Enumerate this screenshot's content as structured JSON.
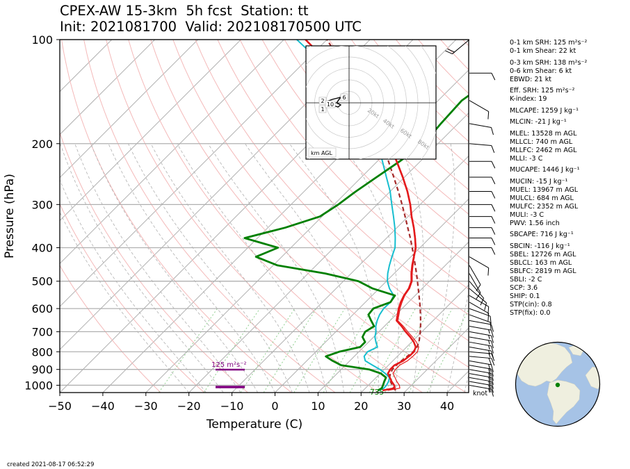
{
  "header": {
    "title_line1": "CPEX-AW 15-3km  5h fcst  Station: tt",
    "title_line2": "Init: 2021081700  Valid: 202108170500 UTC"
  },
  "footer": {
    "created": "created 2021-08-17 06:52:29"
  },
  "chart_data": {
    "type": "skew-t",
    "xlabel": "Temperature (C)",
    "ylabel": "Pressure (hPa)",
    "xlim": [
      -50,
      45
    ],
    "ylim": [
      1050,
      100
    ],
    "xticks": [
      -50,
      -40,
      -30,
      -20,
      -10,
      0,
      10,
      20,
      30,
      40
    ],
    "yticks": [
      100,
      200,
      300,
      400,
      500,
      600,
      700,
      800,
      900,
      1000
    ],
    "y_scale": "log",
    "grid": true,
    "colors": {
      "temperature": "#e41a1c",
      "virtual_temperature": "#e41a1c",
      "dewpoint": "#008000",
      "wetbulb": "#17becf",
      "parcel": "#a52a2a",
      "srh_bar": "#800080",
      "dry_adiabat": "#f4b9b9",
      "moist_adiabat": "#b0b0b0",
      "isotherm": "#b0b0b0",
      "mixing_ratio": "#8fcf8f"
    },
    "series": [
      {
        "name": "",
        "key": "temperature",
        "points": [
          [
            1035,
            24.5
          ],
          [
            1020,
            26.8
          ],
          [
            1000,
            26.0
          ],
          [
            975,
            24.5
          ],
          [
            950,
            23.2
          ],
          [
            925,
            21.8
          ],
          [
            900,
            21.4
          ],
          [
            875,
            21.4
          ],
          [
            850,
            22.4
          ],
          [
            825,
            22.7
          ],
          [
            800,
            22.8
          ],
          [
            775,
            22.1
          ],
          [
            750,
            20.5
          ],
          [
            725,
            18.5
          ],
          [
            700,
            16.2
          ],
          [
            675,
            14.0
          ],
          [
            650,
            11.5
          ],
          [
            625,
            10.4
          ],
          [
            600,
            9.2
          ],
          [
            575,
            8.2
          ],
          [
            550,
            7.4
          ],
          [
            525,
            6.9
          ],
          [
            500,
            5.8
          ],
          [
            475,
            4.0
          ],
          [
            450,
            2.3
          ],
          [
            425,
            0.7
          ],
          [
            400,
            -1.0
          ],
          [
            375,
            -3.4
          ],
          [
            350,
            -6.1
          ],
          [
            325,
            -9.2
          ],
          [
            300,
            -12.3
          ],
          [
            275,
            -16.0
          ],
          [
            250,
            -20.4
          ],
          [
            225,
            -25.5
          ],
          [
            200,
            -31.3
          ],
          [
            175,
            -38.5
          ],
          [
            150,
            -47.6
          ],
          [
            125,
            -59.5
          ],
          [
            100,
            -75.0
          ]
        ]
      },
      {
        "name": "",
        "key": "virtual_temperature",
        "points": [
          [
            1035,
            25.7
          ],
          [
            1020,
            28.0
          ],
          [
            1000,
            27.2
          ],
          [
            975,
            25.7
          ],
          [
            950,
            24.4
          ],
          [
            925,
            23.0
          ],
          [
            900,
            22.6
          ],
          [
            875,
            22.6
          ],
          [
            850,
            23.4
          ],
          [
            825,
            23.6
          ],
          [
            800,
            23.6
          ],
          [
            775,
            22.8
          ],
          [
            750,
            21.1
          ],
          [
            725,
            19.0
          ],
          [
            700,
            16.7
          ],
          [
            675,
            14.4
          ],
          [
            650,
            11.8
          ],
          [
            625,
            10.7
          ],
          [
            600,
            9.5
          ],
          [
            575,
            8.5
          ],
          [
            550,
            7.6
          ],
          [
            525,
            7.1
          ],
          [
            500,
            6.0
          ],
          [
            475,
            4.2
          ],
          [
            450,
            2.5
          ],
          [
            425,
            0.8
          ],
          [
            400,
            -0.9
          ],
          [
            375,
            -3.3
          ],
          [
            350,
            -6.0
          ],
          [
            325,
            -9.1
          ],
          [
            300,
            -12.2
          ],
          [
            275,
            -15.9
          ],
          [
            250,
            -20.3
          ],
          [
            225,
            -25.4
          ],
          [
            200,
            -31.2
          ],
          [
            175,
            -38.4
          ],
          [
            150,
            -47.5
          ],
          [
            125,
            -59.4
          ],
          [
            100,
            -75.0
          ]
        ]
      },
      {
        "name": "",
        "key": "wetbulb",
        "points": [
          [
            1035,
            23.6
          ],
          [
            1020,
            24.3
          ],
          [
            1000,
            24.2
          ],
          [
            975,
            23.8
          ],
          [
            950,
            23.1
          ],
          [
            925,
            21.2
          ],
          [
            900,
            19.0
          ],
          [
            875,
            16.3
          ],
          [
            850,
            13.6
          ],
          [
            825,
            12.3
          ],
          [
            800,
            12.0
          ],
          [
            775,
            13.2
          ],
          [
            750,
            11.7
          ],
          [
            725,
            10.3
          ],
          [
            700,
            9.3
          ],
          [
            675,
            8.0
          ],
          [
            650,
            7.0
          ],
          [
            625,
            6.2
          ],
          [
            600,
            5.7
          ],
          [
            575,
            5.8
          ],
          [
            550,
            5.0
          ],
          [
            525,
            2.4
          ],
          [
            500,
            0.2
          ],
          [
            475,
            -1.5
          ],
          [
            450,
            -3.0
          ],
          [
            425,
            -4.4
          ],
          [
            400,
            -5.8
          ],
          [
            375,
            -8.0
          ],
          [
            350,
            -10.5
          ],
          [
            325,
            -13.4
          ],
          [
            300,
            -16.6
          ],
          [
            275,
            -20.0
          ],
          [
            250,
            -24.2
          ],
          [
            225,
            -28.8
          ],
          [
            200,
            -34.0
          ],
          [
            175,
            -40.7
          ],
          [
            150,
            -49.5
          ],
          [
            125,
            -61.0
          ],
          [
            100,
            -77.0
          ]
        ]
      },
      {
        "name": "",
        "key": "dewpoint",
        "points": [
          [
            1035,
            23.4
          ],
          [
            1020,
            23.8
          ],
          [
            1000,
            23.4
          ],
          [
            975,
            22.8
          ],
          [
            950,
            22.3
          ],
          [
            925,
            20.2
          ],
          [
            900,
            16.5
          ],
          [
            875,
            9.0
          ],
          [
            850,
            6.0
          ],
          [
            825,
            3.4
          ],
          [
            800,
            5.4
          ],
          [
            775,
            9.2
          ],
          [
            750,
            9.2
          ],
          [
            725,
            7.4
          ],
          [
            700,
            6.8
          ],
          [
            675,
            7.6
          ],
          [
            650,
            5.6
          ],
          [
            625,
            3.6
          ],
          [
            600,
            3.3
          ],
          [
            575,
            5.8
          ],
          [
            550,
            5.3
          ],
          [
            525,
            -1.5
          ],
          [
            500,
            -6.5
          ],
          [
            475,
            -16.0
          ],
          [
            450,
            -29.0
          ],
          [
            425,
            -36.0
          ],
          [
            400,
            -33.0
          ],
          [
            375,
            -43.0
          ],
          [
            350,
            -36.0
          ],
          [
            325,
            -30.5
          ],
          [
            300,
            -29.0
          ],
          [
            275,
            -28.0
          ],
          [
            250,
            -26.5
          ],
          [
            225,
            -24.8
          ],
          [
            200,
            -23.3
          ],
          [
            175,
            -24.0
          ],
          [
            150,
            -24.5
          ],
          [
            125,
            -22.0
          ],
          [
            100,
            -17.5
          ]
        ]
      },
      {
        "name": "",
        "key": "parcel",
        "points": [
          [
            1035,
            27.5
          ],
          [
            1000,
            25.5
          ],
          [
            975,
            24.3
          ],
          [
            950,
            23.1
          ],
          [
            925,
            22.4
          ],
          [
            900,
            21.9
          ],
          [
            875,
            21.8
          ],
          [
            850,
            22.0
          ],
          [
            825,
            22.3
          ],
          [
            800,
            22.6
          ],
          [
            775,
            22.4
          ],
          [
            750,
            21.7
          ],
          [
            725,
            20.7
          ],
          [
            700,
            19.6
          ],
          [
            675,
            18.4
          ],
          [
            650,
            17.1
          ],
          [
            625,
            15.7
          ],
          [
            600,
            14.2
          ],
          [
            575,
            12.6
          ],
          [
            550,
            10.9
          ],
          [
            525,
            9.1
          ],
          [
            500,
            7.2
          ],
          [
            475,
            5.2
          ],
          [
            450,
            3.0
          ],
          [
            425,
            0.7
          ],
          [
            400,
            -1.8
          ],
          [
            375,
            -4.5
          ],
          [
            350,
            -7.5
          ],
          [
            325,
            -10.7
          ],
          [
            300,
            -14.2
          ],
          [
            275,
            -18.1
          ],
          [
            250,
            -22.5
          ],
          [
            225,
            -27.4
          ],
          [
            200,
            -33.0
          ],
          [
            175,
            -39.6
          ],
          [
            150,
            -47.5
          ],
          [
            125,
            -57.3
          ],
          [
            100,
            -70.0
          ]
        ]
      }
    ],
    "annotations": {
      "srh_label": "125 m²s⁻²",
      "surface_value": "735",
      "wind_unit": "knot",
      "hodograph": {
        "ring_labels": [
          "20kt",
          "40kt",
          "60kt",
          "80kt"
        ],
        "height_labels": [
          "2",
          "1",
          "10",
          "6"
        ],
        "footer": "km AGL"
      }
    },
    "wind_barbs": [
      {
        "p": 1000,
        "dir": 100,
        "spd": 15
      },
      {
        "p": 975,
        "dir": 100,
        "spd": 18
      },
      {
        "p": 950,
        "dir": 100,
        "spd": 20
      },
      {
        "p": 925,
        "dir": 100,
        "spd": 22
      },
      {
        "p": 900,
        "dir": 100,
        "spd": 22
      },
      {
        "p": 875,
        "dir": 100,
        "spd": 22
      },
      {
        "p": 850,
        "dir": 100,
        "spd": 20
      },
      {
        "p": 825,
        "dir": 95,
        "spd": 18
      },
      {
        "p": 800,
        "dir": 95,
        "spd": 15
      },
      {
        "p": 775,
        "dir": 100,
        "spd": 15
      },
      {
        "p": 750,
        "dir": 100,
        "spd": 15
      },
      {
        "p": 725,
        "dir": 100,
        "spd": 15
      },
      {
        "p": 700,
        "dir": 100,
        "spd": 15
      },
      {
        "p": 675,
        "dir": 100,
        "spd": 15
      },
      {
        "p": 650,
        "dir": 100,
        "spd": 12
      },
      {
        "p": 625,
        "dir": 110,
        "spd": 10
      },
      {
        "p": 600,
        "dir": 110,
        "spd": 10
      },
      {
        "p": 575,
        "dir": 120,
        "spd": 10
      },
      {
        "p": 550,
        "dir": 120,
        "spd": 10
      },
      {
        "p": 525,
        "dir": 130,
        "spd": 10
      },
      {
        "p": 500,
        "dir": 140,
        "spd": 10
      },
      {
        "p": 475,
        "dir": 150,
        "spd": 10
      },
      {
        "p": 450,
        "dir": 150,
        "spd": 10
      },
      {
        "p": 425,
        "dir": 120,
        "spd": 10
      },
      {
        "p": 400,
        "dir": 90,
        "spd": 10
      },
      {
        "p": 375,
        "dir": 90,
        "spd": 10
      },
      {
        "p": 350,
        "dir": 90,
        "spd": 10
      },
      {
        "p": 325,
        "dir": 90,
        "spd": 10
      },
      {
        "p": 300,
        "dir": 90,
        "spd": 10
      },
      {
        "p": 275,
        "dir": 90,
        "spd": 10
      },
      {
        "p": 250,
        "dir": 90,
        "spd": 10
      },
      {
        "p": 225,
        "dir": 90,
        "spd": 10
      },
      {
        "p": 200,
        "dir": 95,
        "spd": 10
      },
      {
        "p": 175,
        "dir": 100,
        "spd": 10
      },
      {
        "p": 150,
        "dir": 120,
        "spd": 10
      },
      {
        "p": 125,
        "dir": 90,
        "spd": 10
      },
      {
        "p": 100,
        "dir": 230,
        "spd": 20
      }
    ]
  },
  "indices": [
    {
      "text": "0-1 km SRH: 125 m²s⁻²"
    },
    {
      "text": "0-1 km Shear: 22 kt"
    },
    {
      "gap": true
    },
    {
      "text": "0-3 km SRH: 138 m²s⁻²"
    },
    {
      "text": "0-6 km Shear: 6 kt"
    },
    {
      "text": "EBWD: 21 kt"
    },
    {
      "gap": true
    },
    {
      "text": "Eff. SRH: 125 m²s⁻²"
    },
    {
      "text": "K-index: 19"
    },
    {
      "gap": true
    },
    {
      "text": "MLCAPE: 1259 J kg⁻¹"
    },
    {
      "gap": true
    },
    {
      "text": "MLCIN: -21 J kg⁻¹"
    },
    {
      "gap": true
    },
    {
      "text": "MLEL: 13528 m AGL"
    },
    {
      "text": "MLLCL: 740 m AGL"
    },
    {
      "text": "MLLFC: 2462 m AGL"
    },
    {
      "text": "MLLI: -3 C"
    },
    {
      "gap": true
    },
    {
      "text": "MUCAPE: 1446 J kg⁻¹"
    },
    {
      "gap": true
    },
    {
      "text": "MUCIN: -15 J kg⁻¹"
    },
    {
      "text": "MUEL: 13967 m AGL"
    },
    {
      "text": "MULCL: 684 m AGL"
    },
    {
      "text": "MULFC: 2352 m AGL"
    },
    {
      "text": "MULI: -3 C"
    },
    {
      "text": "PWV: 1.56 inch"
    },
    {
      "gap": true
    },
    {
      "text": "SBCAPE: 716 J kg⁻¹"
    },
    {
      "gap": true
    },
    {
      "text": "SBCIN: -116 J kg⁻¹"
    },
    {
      "text": "SBEL: 12726 m AGL"
    },
    {
      "text": "SBLCL: 163 m AGL"
    },
    {
      "text": "SBLFC: 2819 m AGL"
    },
    {
      "text": "SBLI: -2 C"
    },
    {
      "text": "SCP: 3.6"
    },
    {
      "text": "SHIP: 0.1"
    },
    {
      "text": "STP(cin): 0.8"
    },
    {
      "text": "STP(fix): 0.0"
    }
  ],
  "globe": {
    "ocean_color": "#a6c3e6",
    "land_color": "#efefdf",
    "station_color": "#008000"
  }
}
